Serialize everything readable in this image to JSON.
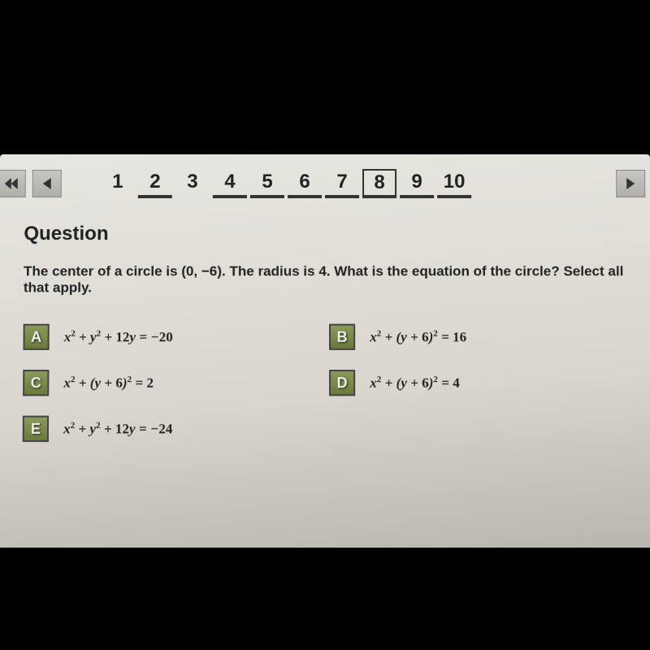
{
  "nav": {
    "pages": [
      "1",
      "2",
      "3",
      "4",
      "5",
      "6",
      "7",
      "8",
      "9",
      "10"
    ],
    "underlined": [
      1,
      3,
      4,
      5,
      6,
      8,
      9
    ],
    "boxed": 7
  },
  "question": {
    "heading": "Question",
    "text": "The center of a circle is (0, −6). The radius is 4. What is the equation of the circle? Select all that apply."
  },
  "answers": [
    {
      "letter": "A",
      "formula_html": "x<sup>2</sup> + y<sup>2</sup> + <span class='num'>12</span>y = −<span class='num'>20</span>",
      "row": 0,
      "col": 0
    },
    {
      "letter": "B",
      "formula_html": "x<sup>2</sup> + (y + <span class='num'>6</span>)<sup>2</sup> = <span class='num'>16</span>",
      "row": 0,
      "col": 1
    },
    {
      "letter": "C",
      "formula_html": "x<sup>2</sup> + (y + <span class='num'>6</span>)<sup>2</sup> = <span class='num'>2</span>",
      "row": 1,
      "col": 0
    },
    {
      "letter": "D",
      "formula_html": "x<sup>2</sup> + (y + <span class='num'>6</span>)<sup>2</sup> = <span class='num'>4</span>",
      "row": 1,
      "col": 1
    },
    {
      "letter": "E",
      "formula_html": "x<sup>2</sup> + y<sup>2</sup> + <span class='num'>12</span>y = −<span class='num'>24</span>",
      "row": 2,
      "col": 0
    }
  ],
  "colors": {
    "answer_box_bg_top": "#8a9a5a",
    "answer_box_bg_bottom": "#6a7a3a",
    "screen_bg": "#e8e6e0",
    "outer_bg": "#000000"
  }
}
